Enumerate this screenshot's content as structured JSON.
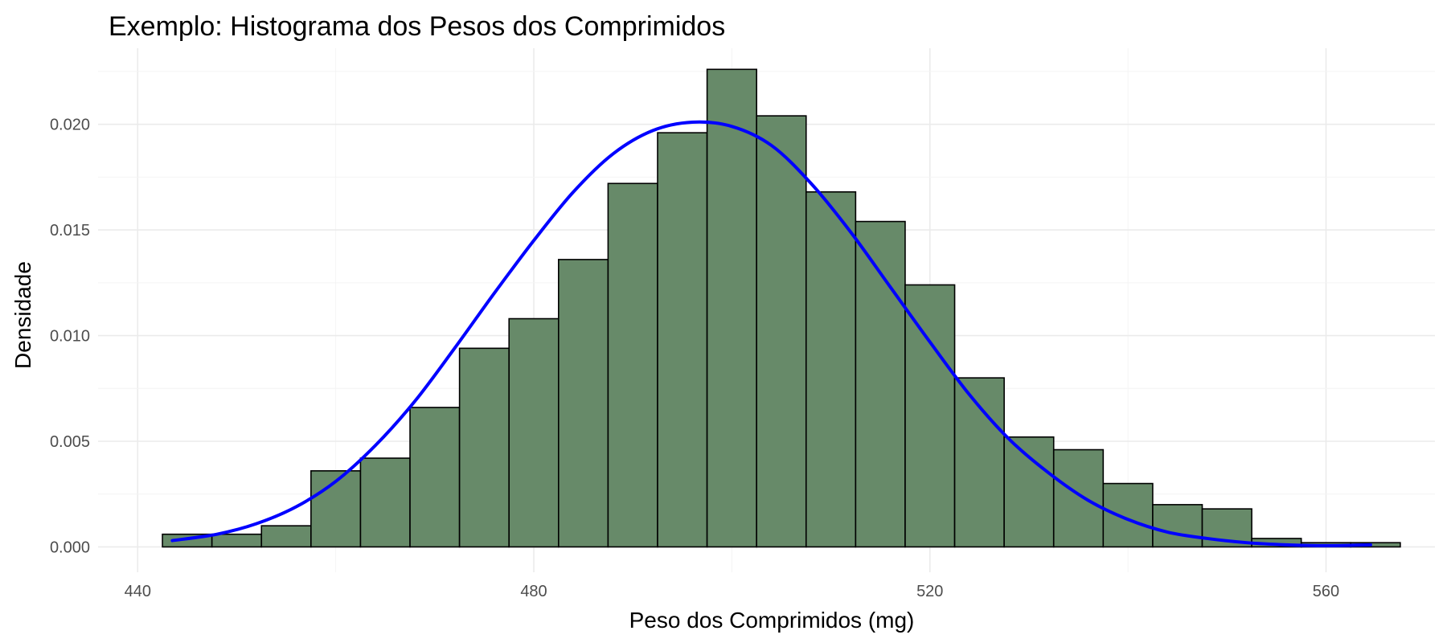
{
  "chart_data": {
    "type": "bar",
    "title": "Exemplo: Histograma dos Pesos dos Comprimidos",
    "xlabel": "Peso dos Comprimidos (mg)",
    "ylabel": "Densidade",
    "xlim": [
      436,
      571
    ],
    "ylim": [
      -0.0012,
      0.0236
    ],
    "x_ticks": [
      440,
      480,
      520,
      560
    ],
    "x_tick_labels": [
      "440",
      "480",
      "520",
      "560"
    ],
    "y_ticks": [
      0,
      0.005,
      0.01,
      0.015,
      0.02
    ],
    "y_tick_labels": [
      "0.000",
      "0.005",
      "0.010",
      "0.015",
      "0.020"
    ],
    "grid": true,
    "bins": {
      "start": 442.5,
      "width": 5,
      "density": [
        0.0006,
        0.0006,
        0.001,
        0.0036,
        0.0042,
        0.0066,
        0.0094,
        0.0108,
        0.0136,
        0.0172,
        0.0196,
        0.0226,
        0.0204,
        0.0168,
        0.0154,
        0.0124,
        0.008,
        0.0052,
        0.0046,
        0.003,
        0.002,
        0.0018,
        0.0004,
        0.0002,
        0.0002
      ]
    },
    "density_curve": {
      "x": [
        443.5,
        448,
        452,
        456,
        460,
        464,
        468,
        472,
        476,
        480,
        484,
        488,
        492,
        496,
        500,
        504,
        508,
        512,
        516,
        520,
        524,
        528,
        532,
        536,
        540,
        544,
        548,
        552,
        556,
        560,
        564.5
      ],
      "y": [
        0.0003,
        0.0006,
        0.0011,
        0.0019,
        0.0031,
        0.0048,
        0.0069,
        0.0094,
        0.012,
        0.0145,
        0.0168,
        0.0186,
        0.0197,
        0.0201,
        0.0199,
        0.019,
        0.0172,
        0.0149,
        0.0123,
        0.0097,
        0.0072,
        0.0051,
        0.0035,
        0.0022,
        0.0013,
        0.0007,
        0.0004,
        0.0002,
        0.0001,
        6e-05,
        0.0001
      ]
    },
    "colors": {
      "bar_fill": "#678a69",
      "bar_border": "#000000",
      "curve": "#0000ff"
    }
  }
}
